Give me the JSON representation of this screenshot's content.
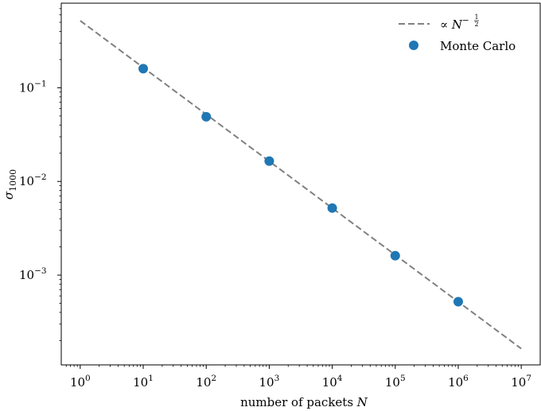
{
  "chart_data": {
    "type": "scatter",
    "xscale": "log",
    "yscale": "log",
    "xlim": [
      0.5,
      20000000
    ],
    "ylim": [
      0.00011,
      0.8
    ],
    "xticks": [
      {
        "base": "10",
        "exp": "0"
      },
      {
        "base": "10",
        "exp": "1"
      },
      {
        "base": "10",
        "exp": "2"
      },
      {
        "base": "10",
        "exp": "3"
      },
      {
        "base": "10",
        "exp": "4"
      },
      {
        "base": "10",
        "exp": "5"
      },
      {
        "base": "10",
        "exp": "6"
      },
      {
        "base": "10",
        "exp": "7"
      }
    ],
    "yticks": [
      {
        "base": "10",
        "exp": "−1"
      },
      {
        "base": "10",
        "exp": "−2"
      },
      {
        "base": "10",
        "exp": "−3"
      }
    ],
    "xlabel": {
      "text": "number of packets ",
      "var": "N"
    },
    "ylabel": {
      "sym": "σ",
      "sub": "1000"
    },
    "grid": false,
    "legend_position": "top-right",
    "series": [
      {
        "name": "∝ N^{-1/2}",
        "style": "dashed-line",
        "color": "#808080",
        "x": [
          1,
          10000000
        ],
        "y": [
          0.52,
          0.000164
        ]
      },
      {
        "name": "Monte Carlo",
        "style": "markers",
        "color": "#1f77b4",
        "x": [
          10,
          100,
          1000,
          10000,
          100000,
          1000000
        ],
        "y": [
          0.16,
          0.049,
          0.0165,
          0.0052,
          0.00161,
          0.00052
        ]
      }
    ],
    "legend": {
      "line_prefix": "∝ ",
      "line_var": "N",
      "line_exp": "−",
      "line_frac_num": "1",
      "line_frac_den": "2",
      "marker_label": "Monte Carlo"
    }
  }
}
